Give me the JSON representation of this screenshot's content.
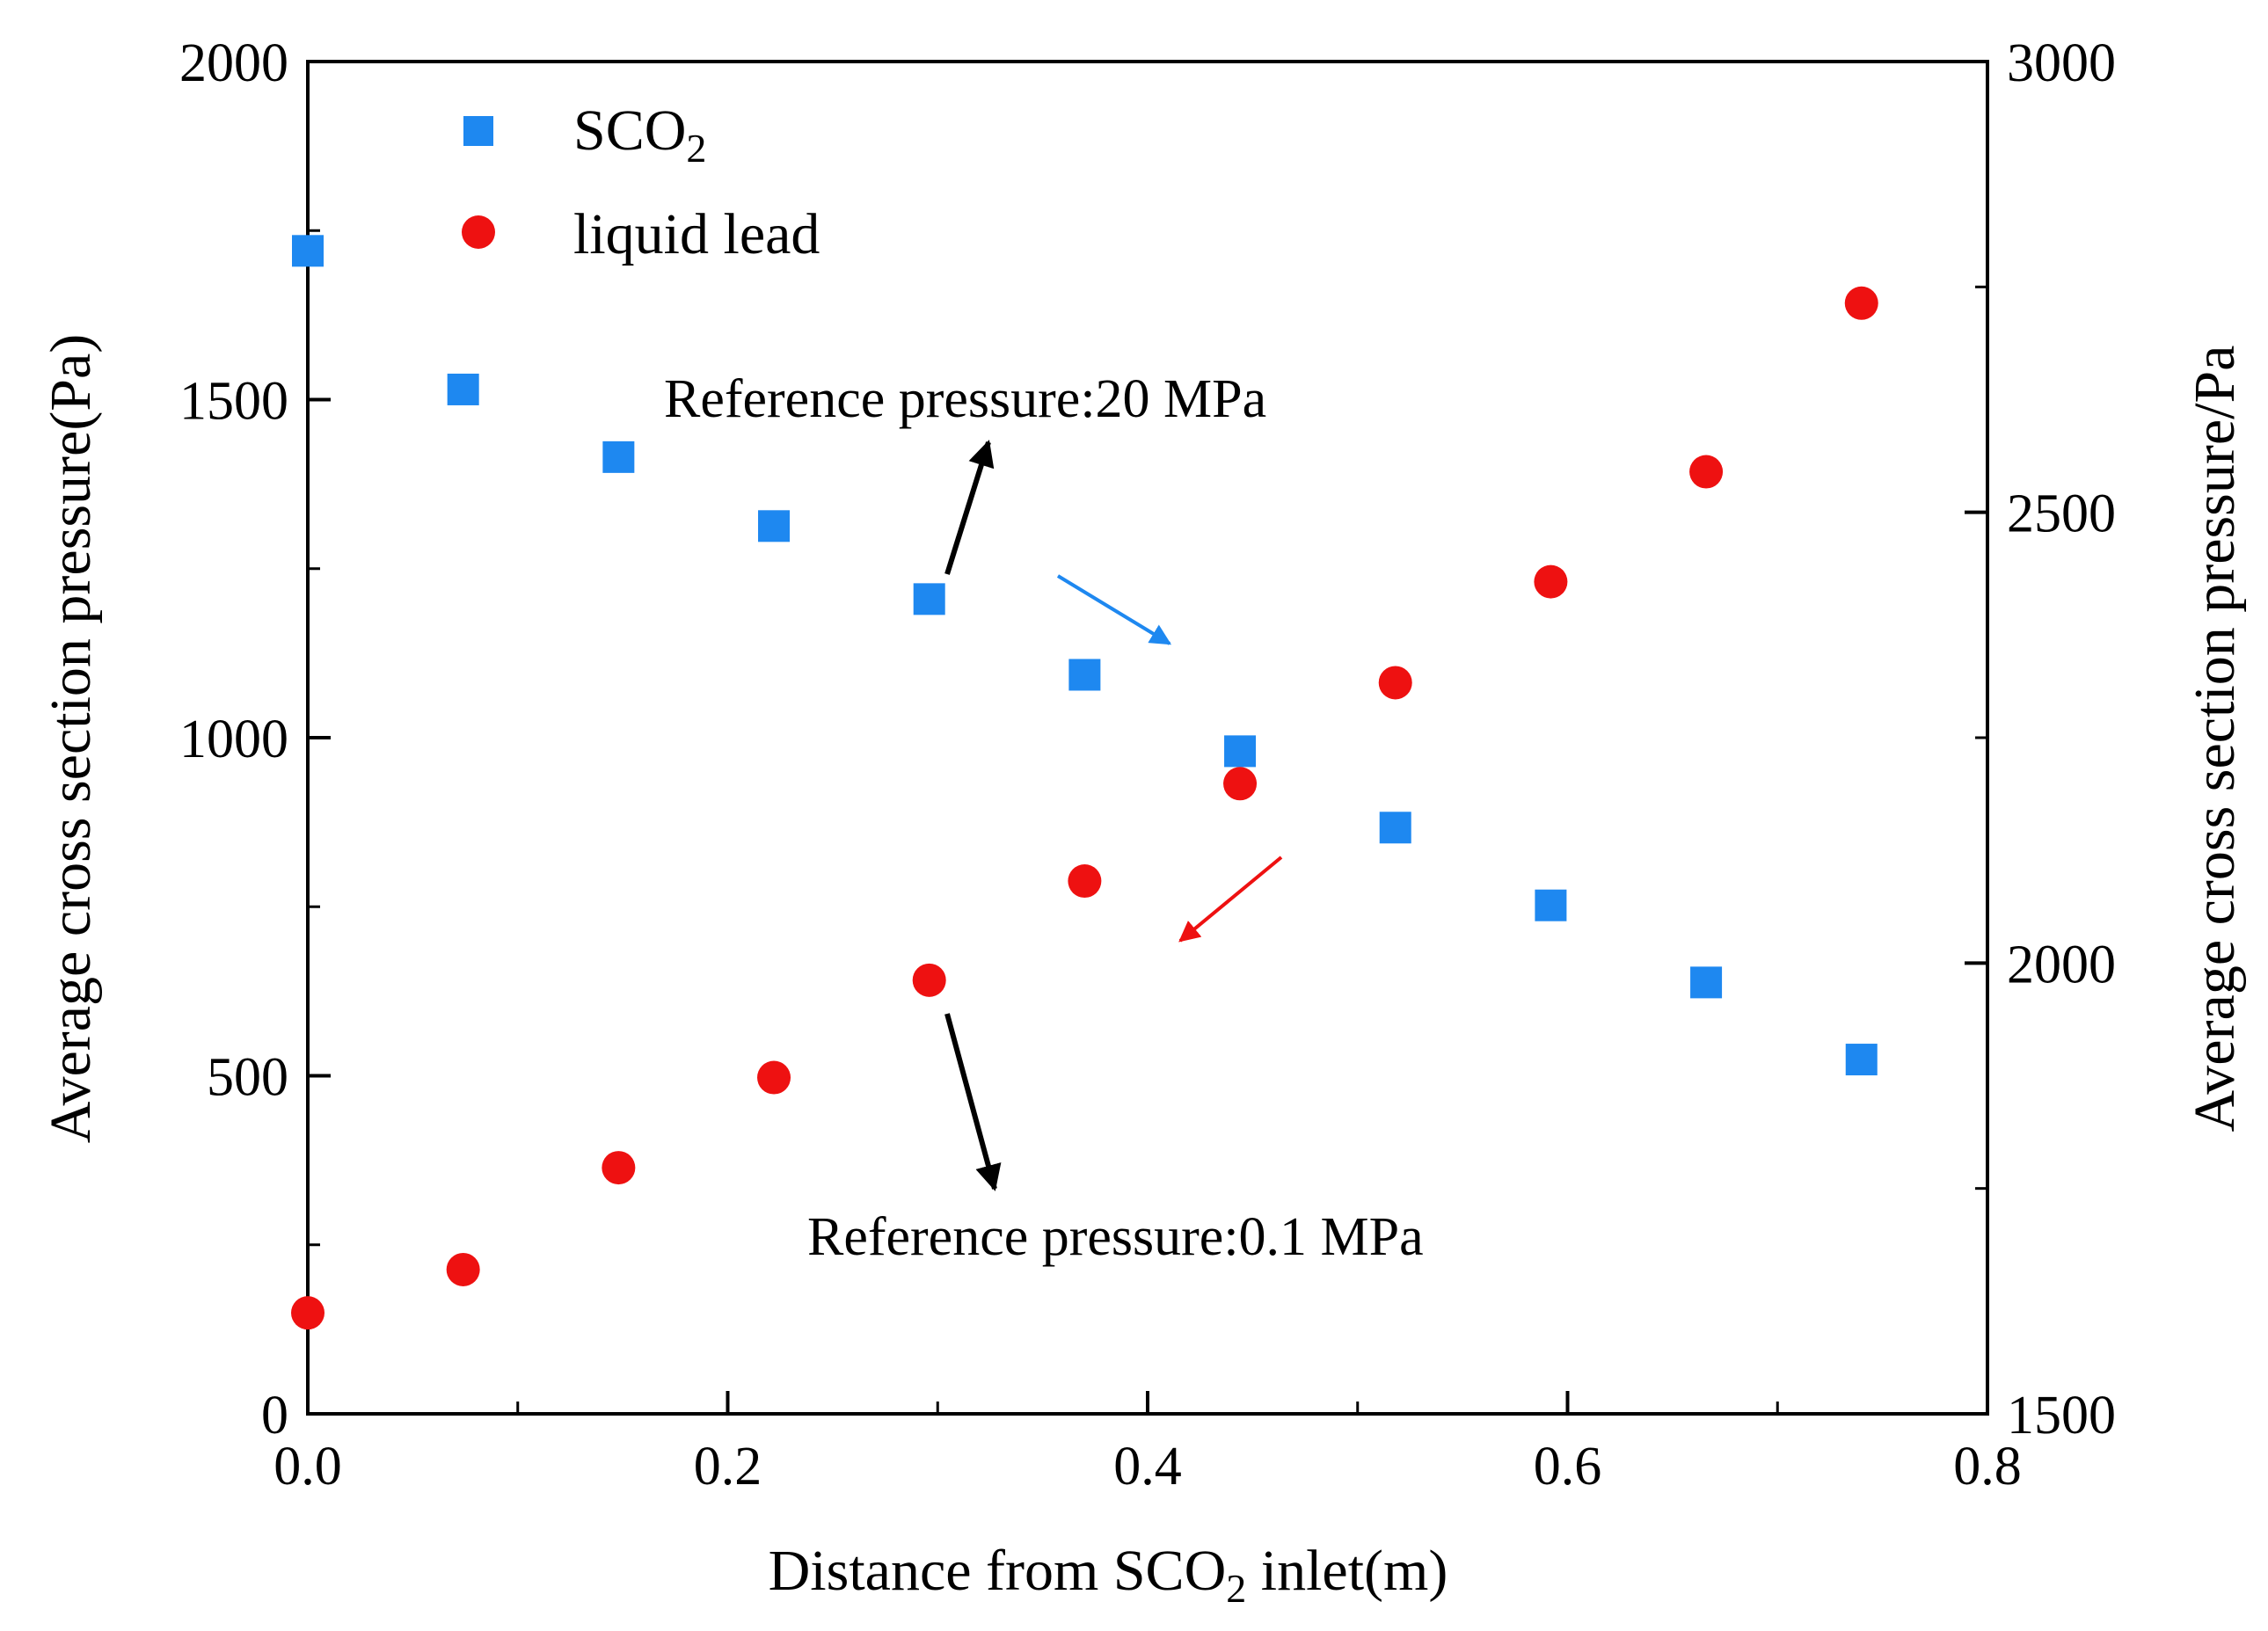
{
  "chart_data": {
    "type": "scatter",
    "xlabel": "Distance from SCO2 inlet(m)",
    "xlabel_parts": {
      "pre": "Distance from SCO",
      "sub": "2",
      "post": " inlet(m)"
    },
    "ylabel_left": "Average cross section pressure(Pa)",
    "ylabel_right": "Average cross section pressure/Pa",
    "xlim": [
      0.0,
      0.8
    ],
    "ylim_left": [
      0,
      2000
    ],
    "ylim_right": [
      1500,
      3000
    ],
    "x_ticks": [
      "0.0",
      "0.2",
      "0.4",
      "0.6",
      "0.8"
    ],
    "y_left_ticks": [
      "0",
      "500",
      "1000",
      "1500",
      "2000"
    ],
    "y_right_ticks": [
      "1500",
      "2000",
      "2500",
      "3000"
    ],
    "grid": false,
    "legend_position": "top-left",
    "series": [
      {
        "name": "SCO2",
        "name_parts": {
          "pre": "SCO",
          "sub": "2"
        },
        "axis": "left",
        "marker": "square",
        "color": "#1e88f0",
        "x": [
          0.0,
          0.074,
          0.148,
          0.222,
          0.296,
          0.37,
          0.444,
          0.518,
          0.592,
          0.666,
          0.74
        ],
        "y": [
          1720,
          1515,
          1415,
          1313,
          1205,
          1093,
          980,
          867,
          752,
          638,
          524
        ]
      },
      {
        "name": "liquid lead",
        "axis": "right",
        "marker": "circle",
        "color": "#ee1111",
        "x": [
          0.0,
          0.074,
          0.148,
          0.222,
          0.296,
          0.37,
          0.444,
          0.518,
          0.592,
          0.666,
          0.74
        ],
        "y": [
          1612,
          1660,
          1773,
          1873,
          1981,
          2091,
          2199,
          2311,
          2423,
          2545,
          2732
        ]
      }
    ],
    "annotations": [
      {
        "text": "Reference pressure:20 MPa",
        "color": "#000000"
      },
      {
        "text": "Reference pressure:0.1 MPa",
        "color": "#000000"
      }
    ],
    "arrow_colors": {
      "black": "#000000",
      "blue": "#1e88f0",
      "red": "#ee1111"
    }
  }
}
